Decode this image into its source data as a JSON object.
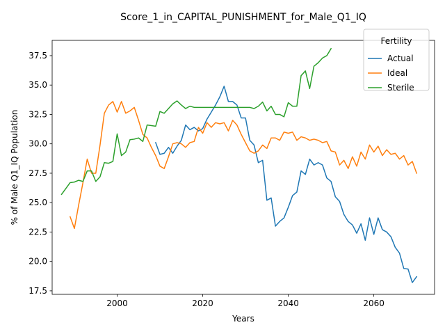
{
  "chart_data": {
    "type": "line",
    "title": "Score_1_in_CAPITAL_PUNISHMENT_for_Male_Q1_IQ",
    "xlabel": "Years",
    "ylabel": "% of Male Q1_IQ Population",
    "xlim": [
      1984.8,
      2074.2
    ],
    "ylim": [
      17.2,
      38.8
    ],
    "xticks": [
      2000,
      2020,
      2040,
      2060
    ],
    "yticks": [
      17.5,
      20.0,
      22.5,
      25.0,
      27.5,
      30.0,
      32.5,
      35.0,
      37.5
    ],
    "ytick_labels": [
      "17.5",
      "20.0",
      "22.5",
      "25.0",
      "27.5",
      "30.0",
      "32.5",
      "35.0",
      "37.5"
    ],
    "grid": false,
    "legend": {
      "title": "Fertility",
      "location": "top-right"
    },
    "series": [
      {
        "name": "Actual",
        "color": "#1f77b4",
        "x": [
          2009,
          2010,
          2011,
          2012,
          2013,
          2014,
          2015,
          2016,
          2017,
          2018,
          2019,
          2020,
          2021,
          2022,
          2023,
          2024,
          2025,
          2026,
          2027,
          2028,
          2029,
          2030,
          2031,
          2032,
          2033,
          2034,
          2035,
          2036,
          2037,
          2038,
          2039,
          2040,
          2041,
          2042,
          2043,
          2044,
          2045,
          2046,
          2047,
          2048,
          2049,
          2050,
          2051,
          2052,
          2053,
          2054,
          2055,
          2056,
          2057,
          2058,
          2059,
          2060,
          2061,
          2062,
          2063,
          2064,
          2065,
          2066,
          2067,
          2068,
          2069,
          2070
        ],
        "values": [
          30.1,
          29.1,
          29.2,
          29.7,
          29.2,
          29.8,
          30.3,
          31.6,
          31.2,
          31.4,
          31.1,
          31.3,
          32.1,
          32.7,
          33.3,
          34.0,
          34.9,
          33.6,
          33.6,
          33.3,
          32.2,
          32.2,
          30.3,
          29.9,
          28.4,
          28.6,
          25.2,
          25.4,
          23.0,
          23.4,
          23.7,
          24.6,
          25.6,
          25.9,
          27.7,
          27.4,
          28.7,
          28.2,
          28.4,
          28.2,
          27.1,
          26.8,
          25.5,
          25.1,
          24.0,
          23.4,
          23.1,
          22.4,
          23.2,
          21.8,
          23.7,
          22.3,
          23.7,
          22.7,
          22.5,
          22.1,
          21.2,
          20.7,
          19.4,
          19.35,
          18.2,
          18.7
        ]
      },
      {
        "name": "Ideal",
        "color": "#ff7f0e",
        "x": [
          1989,
          1990,
          1991,
          1992,
          1993,
          1994,
          1995,
          1996,
          1997,
          1998,
          1999,
          2000,
          2001,
          2002,
          2003,
          2004,
          2005,
          2006,
          2007,
          2008,
          2009,
          2010,
          2011,
          2012,
          2013,
          2014,
          2015,
          2016,
          2017,
          2018,
          2019,
          2020,
          2021,
          2022,
          2023,
          2024,
          2025,
          2026,
          2027,
          2028,
          2029,
          2030,
          2031,
          2032,
          2033,
          2034,
          2035,
          2036,
          2037,
          2038,
          2039,
          2040,
          2041,
          2042,
          2043,
          2044,
          2045,
          2046,
          2047,
          2048,
          2049,
          2050,
          2051,
          2052,
          2053,
          2054,
          2055,
          2056,
          2057,
          2058,
          2059,
          2060,
          2061,
          2062,
          2063,
          2064,
          2065,
          2066,
          2067,
          2068,
          2069,
          2070
        ],
        "values": [
          23.8,
          22.8,
          24.8,
          26.7,
          28.7,
          27.5,
          27.5,
          29.9,
          32.6,
          33.3,
          33.6,
          32.7,
          33.6,
          32.6,
          32.8,
          33.1,
          32.0,
          30.8,
          30.5,
          29.7,
          29.0,
          28.1,
          27.9,
          28.9,
          30.0,
          30.1,
          30.0,
          29.7,
          30.1,
          30.2,
          31.4,
          30.9,
          31.8,
          31.4,
          31.8,
          31.7,
          31.8,
          31.1,
          32.0,
          31.6,
          30.8,
          30.1,
          29.4,
          29.2,
          29.4,
          29.9,
          29.6,
          30.5,
          30.5,
          30.3,
          31.0,
          30.9,
          31.0,
          30.3,
          30.6,
          30.5,
          30.3,
          30.4,
          30.3,
          30.1,
          30.2,
          29.4,
          29.3,
          28.2,
          28.6,
          27.9,
          28.9,
          28.1,
          29.3,
          28.7,
          29.9,
          29.3,
          29.8,
          29.0,
          29.5,
          29.1,
          29.2,
          28.7,
          29.0,
          28.2,
          28.5,
          27.5
        ]
      },
      {
        "name": "Sterile",
        "color": "#2ca02c",
        "x": [
          1987,
          1988,
          1989,
          1990,
          1991,
          1992,
          1993,
          1994,
          1995,
          1996,
          1997,
          1998,
          1999,
          2000,
          2001,
          2002,
          2003,
          2004,
          2005,
          2006,
          2007,
          2008,
          2009,
          2010,
          2011,
          2012,
          2013,
          2014,
          2015,
          2016,
          2017,
          2018,
          2019,
          2020,
          2021,
          2022,
          2023,
          2024,
          2025,
          2026,
          2027,
          2028,
          2029,
          2030,
          2031,
          2032,
          2033,
          2034,
          2035,
          2036,
          2037,
          2038,
          2039,
          2040,
          2041,
          2042,
          2043,
          2044,
          2045,
          2046,
          2047,
          2048,
          2049,
          2050
        ],
        "values": [
          25.7,
          26.2,
          26.7,
          26.75,
          26.9,
          26.8,
          27.7,
          27.7,
          26.8,
          27.2,
          28.4,
          28.35,
          28.5,
          30.85,
          29.0,
          29.3,
          30.35,
          30.4,
          30.5,
          30.2,
          31.6,
          31.55,
          31.5,
          32.75,
          32.6,
          33.0,
          33.4,
          33.65,
          33.3,
          33.0,
          33.2,
          33.1,
          33.1,
          33.1,
          33.1,
          33.1,
          33.1,
          33.1,
          33.1,
          33.1,
          33.1,
          33.1,
          33.1,
          33.1,
          33.1,
          33.0,
          33.2,
          33.55,
          32.8,
          33.2,
          32.5,
          32.5,
          32.3,
          33.5,
          33.2,
          33.2,
          35.8,
          36.2,
          34.7,
          36.6,
          36.9,
          37.3,
          37.5,
          38.1
        ]
      }
    ]
  }
}
